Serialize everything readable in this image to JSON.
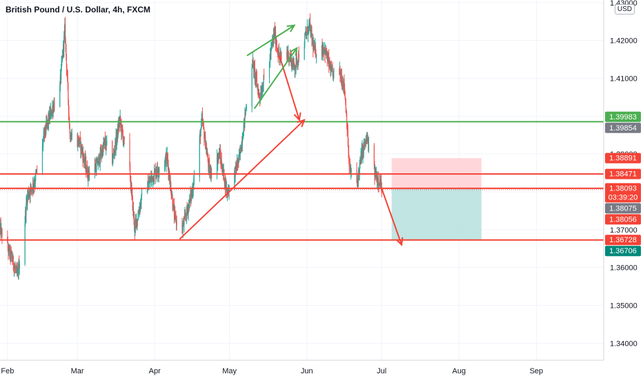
{
  "title": "British Pound / U.S. Dollar, 4h, FXCM",
  "currency": "USD",
  "countdown": "03:39:20",
  "colors": {
    "up": "#26a69a",
    "down": "#ef5350",
    "green_line": "#4caf50",
    "red_line": "#f44336",
    "current_price": "#ef5350",
    "profit_zone": "#b2dfdb",
    "loss_zone": "#ffcdd2",
    "grey_label": "#787b86",
    "teal_label": "#00897b"
  },
  "chart_data": {
    "type": "candlestick",
    "title": "British Pound / U.S. Dollar, 4h, FXCM",
    "ylim": [
      1.3355,
      1.4307
    ],
    "xlim": [
      "2021-01-29",
      "2021-09-28"
    ],
    "y_ticks": [
      "1.34000",
      "1.35000",
      "1.36000",
      "1.37000",
      "1.38000",
      "1.39000",
      "1.40000",
      "1.41000",
      "1.42000",
      "1.43000"
    ],
    "x_ticks": [
      {
        "label": "Feb",
        "date": "2021-02-01"
      },
      {
        "label": "Mar",
        "date": "2021-03-01"
      },
      {
        "label": "Apr",
        "date": "2021-04-01"
      },
      {
        "label": "May",
        "date": "2021-05-01"
      },
      {
        "label": "Jun",
        "date": "2021-06-01"
      },
      {
        "label": "Jul",
        "date": "2021-07-01"
      },
      {
        "label": "Aug",
        "date": "2021-08-01"
      },
      {
        "label": "Sep",
        "date": "2021-09-01"
      }
    ],
    "price_path": [
      [
        "2021-01-29",
        1.37
      ],
      [
        "2021-02-03",
        1.362
      ],
      [
        "2021-02-05",
        1.3575
      ],
      [
        "2021-02-09",
        1.379
      ],
      [
        "2021-02-12",
        1.383
      ],
      [
        "2021-02-16",
        1.396
      ],
      [
        "2021-02-22",
        1.408
      ],
      [
        "2021-02-24",
        1.423
      ],
      [
        "2021-02-26",
        1.395
      ],
      [
        "2021-03-02",
        1.393
      ],
      [
        "2021-03-05",
        1.385
      ],
      [
        "2021-03-09",
        1.387
      ],
      [
        "2021-03-12",
        1.393
      ],
      [
        "2021-03-15",
        1.388
      ],
      [
        "2021-03-18",
        1.399
      ],
      [
        "2021-03-22",
        1.385
      ],
      [
        "2021-03-24",
        1.37
      ],
      [
        "2021-03-27",
        1.379
      ],
      [
        "2021-04-01",
        1.385
      ],
      [
        "2021-04-06",
        1.389
      ],
      [
        "2021-04-09",
        1.373
      ],
      [
        "2021-04-12",
        1.37
      ],
      [
        "2021-04-16",
        1.38
      ],
      [
        "2021-04-20",
        1.399
      ],
      [
        "2021-04-23",
        1.385
      ],
      [
        "2021-04-27",
        1.39
      ],
      [
        "2021-04-30",
        1.38
      ],
      [
        "2021-05-03",
        1.385
      ],
      [
        "2021-05-05",
        1.389
      ],
      [
        "2021-05-07",
        1.399
      ],
      [
        "2021-05-10",
        1.415
      ],
      [
        "2021-05-13",
        1.405
      ],
      [
        "2021-05-17",
        1.415
      ],
      [
        "2021-05-19",
        1.422
      ],
      [
        "2021-05-21",
        1.415
      ],
      [
        "2021-05-24",
        1.417
      ],
      [
        "2021-05-27",
        1.413
      ],
      [
        "2021-05-31",
        1.42
      ],
      [
        "2021-06-02",
        1.424
      ],
      [
        "2021-06-04",
        1.417
      ],
      [
        "2021-06-08",
        1.418
      ],
      [
        "2021-06-11",
        1.411
      ],
      [
        "2021-06-14",
        1.412
      ],
      [
        "2021-06-16",
        1.408
      ],
      [
        "2021-06-17",
        1.399
      ],
      [
        "2021-06-18",
        1.386
      ],
      [
        "2021-06-21",
        1.382
      ],
      [
        "2021-06-23",
        1.39
      ],
      [
        "2021-06-25",
        1.394
      ],
      [
        "2021-06-28",
        1.385
      ],
      [
        "2021-06-30",
        1.383
      ],
      [
        "2021-07-01",
        1.3809
      ]
    ],
    "horizontal_lines": [
      {
        "price": 1.39854,
        "color": "green"
      },
      {
        "price": 1.38471,
        "color": "red"
      },
      {
        "price": 1.38093,
        "color": "red"
      },
      {
        "price": 1.36728,
        "color": "red"
      }
    ],
    "price_labels": [
      {
        "price": 1.39983,
        "text": "1.39983",
        "style": "green"
      },
      {
        "price": 1.39854,
        "text": "1.39854",
        "style": "grey"
      },
      {
        "price": 1.38891,
        "text": "1.38891",
        "style": "red"
      },
      {
        "price": 1.38471,
        "text": "1.38471",
        "style": "red"
      },
      {
        "price": 1.38093,
        "text": "1.38093",
        "style": "red",
        "extra": "03:39:20"
      },
      {
        "price": 1.38075,
        "text": "1.38075",
        "style": "grey"
      },
      {
        "price": 1.38056,
        "text": "1.38056",
        "style": "red"
      },
      {
        "price": 1.36728,
        "text": "1.36728",
        "style": "red"
      },
      {
        "price": 1.36706,
        "text": "1.36706",
        "style": "teal"
      }
    ],
    "position": {
      "entry": 1.38093,
      "stop": 1.38891,
      "target": 1.36728,
      "start": "2021-07-05",
      "end": "2021-08-10"
    },
    "annotations": [
      {
        "type": "arrow",
        "color": "red",
        "points": [
          [
            "2021-04-11",
            1.3675
          ],
          [
            "2021-05-31",
            1.399
          ]
        ]
      },
      {
        "type": "arrow",
        "color": "red",
        "points": [
          [
            "2021-05-21",
            1.416
          ],
          [
            "2021-05-29",
            1.399
          ]
        ]
      },
      {
        "type": "arrow",
        "color": "red",
        "points": [
          [
            "2021-07-01",
            1.3809
          ],
          [
            "2021-07-09",
            1.366
          ]
        ]
      },
      {
        "type": "arrow",
        "color": "green",
        "points": [
          [
            "2021-05-08",
            1.416
          ],
          [
            "2021-05-27",
            1.424
          ]
        ]
      },
      {
        "type": "arrow",
        "color": "green",
        "points": [
          [
            "2021-05-11",
            1.402
          ],
          [
            "2021-05-28",
            1.418
          ]
        ]
      }
    ]
  }
}
